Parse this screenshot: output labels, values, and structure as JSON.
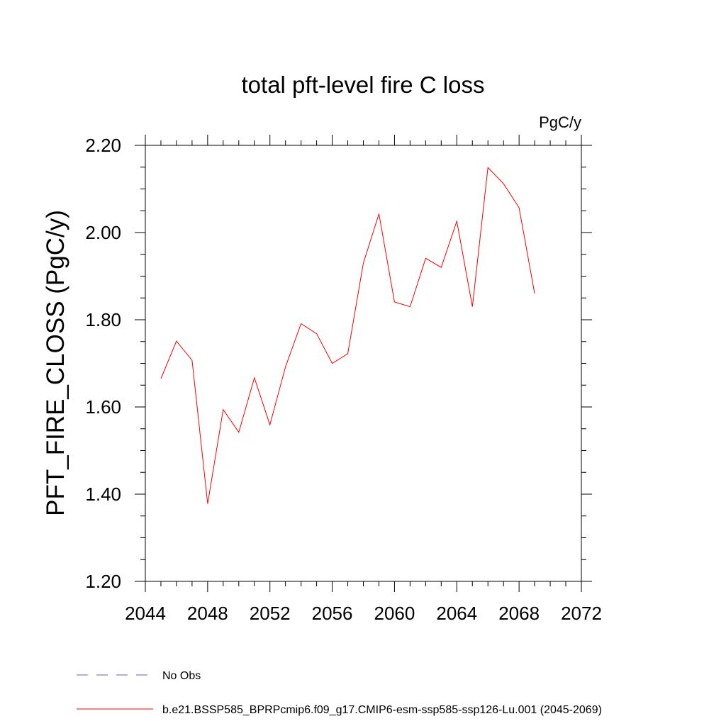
{
  "chart_data": {
    "type": "line",
    "title": "total pft-level fire C loss",
    "units": "PgC/y",
    "ylabel": "PFT_FIRE_CLOSS  (PgC/y)",
    "xlabel": "",
    "xlim": [
      2044,
      2072
    ],
    "ylim": [
      1.2,
      2.2
    ],
    "xticks": [
      2044,
      2048,
      2052,
      2056,
      2060,
      2064,
      2068,
      2072
    ],
    "xtick_labels": [
      "2044",
      "2048",
      "2052",
      "2056",
      "2060",
      "2064",
      "2068",
      "2072"
    ],
    "yticks": [
      1.2,
      1.4,
      1.6,
      1.8,
      2.0,
      2.2
    ],
    "ytick_labels": [
      "1.20",
      "1.40",
      "1.60",
      "1.80",
      "2.00",
      "2.20"
    ],
    "grid": false,
    "series": [
      {
        "name": "b.e21.BSSP585_BPRPcmip6.f09_g17.CMIP6-esm-ssp585-ssp126-Lu.001 (2045-2069)",
        "color": "#ff0000",
        "x": [
          2045,
          2046,
          2047,
          2048,
          2049,
          2050,
          2051,
          2052,
          2053,
          2054,
          2055,
          2056,
          2057,
          2058,
          2059,
          2060,
          2061,
          2062,
          2063,
          2064,
          2065,
          2066,
          2067,
          2068,
          2069
        ],
        "values": [
          1.665,
          1.751,
          1.707,
          1.378,
          1.594,
          1.542,
          1.667,
          1.559,
          1.692,
          1.791,
          1.768,
          1.7,
          1.722,
          1.93,
          2.043,
          1.841,
          1.83,
          1.941,
          1.92,
          2.026,
          1.83,
          2.149,
          2.112,
          2.057,
          1.86
        ]
      }
    ],
    "legend": {
      "placement": "bottom-left",
      "entries": [
        {
          "label": "No Obs",
          "color": "#6a5acd",
          "style": "dashed"
        },
        {
          "label": "b.e21.BSSP585_BPRPcmip6.f09_g17.CMIP6-esm-ssp585-ssp126-Lu.001 (2045-2069)",
          "color": "#ff0000",
          "style": "solid"
        }
      ]
    }
  }
}
